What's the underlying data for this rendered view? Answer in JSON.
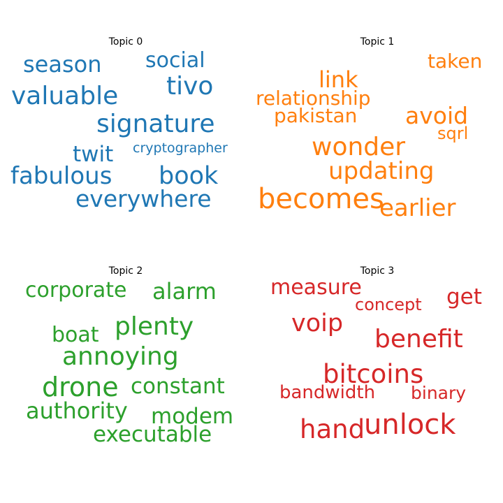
{
  "chart_data": [
    {
      "type": "wordcloud",
      "title": "Topic 0",
      "color": "#1f77b4",
      "words": [
        "season",
        "social",
        "tivo",
        "valuable",
        "signature",
        "twit",
        "cryptographer",
        "fabulous",
        "book",
        "everywhere"
      ]
    },
    {
      "type": "wordcloud",
      "title": "Topic 1",
      "color": "#ff7f0e",
      "words": [
        "taken",
        "link",
        "relationship",
        "avoid",
        "pakistan",
        "sqrl",
        "wonder",
        "updating",
        "becomes",
        "earlier"
      ]
    },
    {
      "type": "wordcloud",
      "title": "Topic 2",
      "color": "#2ca02c",
      "words": [
        "corporate",
        "alarm",
        "boat",
        "plenty",
        "annoying",
        "drone",
        "constant",
        "authority",
        "modem",
        "executable"
      ]
    },
    {
      "type": "wordcloud",
      "title": "Topic 3",
      "color": "#d62728",
      "words": [
        "measure",
        "get",
        "concept",
        "voip",
        "benefit",
        "bitcoins",
        "bandwidth",
        "binary",
        "hand",
        "unlock"
      ]
    }
  ]
}
